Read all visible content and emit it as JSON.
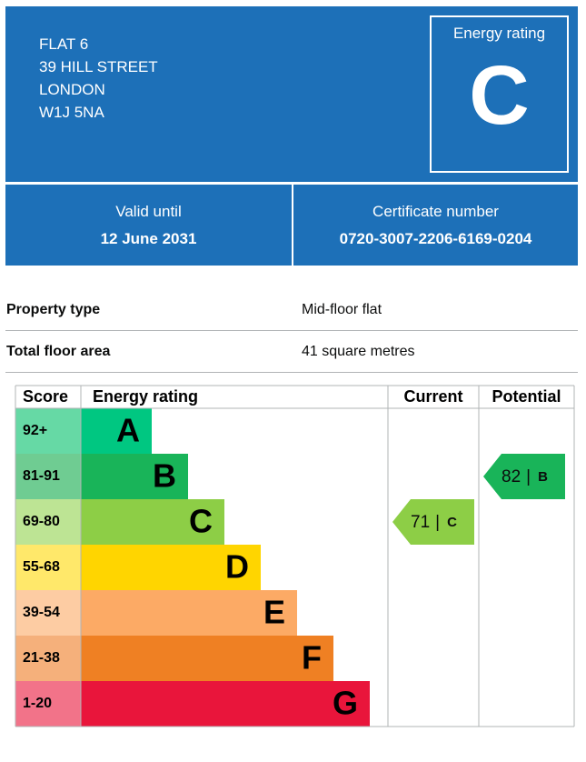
{
  "header": {
    "address": [
      "FLAT 6",
      "39 HILL STREET",
      "LONDON",
      "W1J 5NA"
    ],
    "rating_label": "Energy rating",
    "rating": "C"
  },
  "validity": {
    "label": "Valid until",
    "value": "12 June 2031"
  },
  "certificate": {
    "label": "Certificate number",
    "value": "0720-3007-2206-6169-0204"
  },
  "details": [
    {
      "label": "Property type",
      "value": "Mid-floor flat"
    },
    {
      "label": "Total floor area",
      "value": "41 square metres"
    }
  ],
  "rating_table": {
    "headers": [
      "Score",
      "Energy rating",
      "Current",
      "Potential"
    ],
    "bands": [
      {
        "range": "92+",
        "letter": "A",
        "color": "#00c781",
        "score_color": "#66d9a5"
      },
      {
        "range": "81-91",
        "letter": "B",
        "color": "#19b459",
        "score_color": "#6fcc92"
      },
      {
        "range": "69-80",
        "letter": "C",
        "color": "#8dce46",
        "score_color": "#bde494"
      },
      {
        "range": "55-68",
        "letter": "D",
        "color": "#ffd500",
        "score_color": "#ffe86a"
      },
      {
        "range": "39-54",
        "letter": "E",
        "color": "#fcaa65",
        "score_color": "#fdcca3"
      },
      {
        "range": "21-38",
        "letter": "F",
        "color": "#ef8023",
        "score_color": "#f5b07b"
      },
      {
        "range": "1-20",
        "letter": "G",
        "color": "#e9153b",
        "score_color": "#f27389"
      }
    ],
    "separator": "|",
    "current": {
      "score": 71,
      "band": "C"
    },
    "potential": {
      "score": 82,
      "band": "B"
    }
  }
}
